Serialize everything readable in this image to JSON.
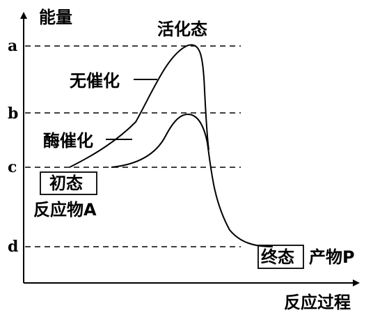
{
  "axes": {
    "y_label": "能量",
    "x_label": "反应过程"
  },
  "levels": {
    "a": "a",
    "b": "b",
    "c": "c",
    "d": "d"
  },
  "labels": {
    "transition_state": "活化态",
    "uncatalyzed": "无催化",
    "enzyme_catalyzed": "酶催化",
    "initial_state": "初态",
    "reactant": "反应物A",
    "final_state": "终态",
    "product": "产物P"
  }
}
